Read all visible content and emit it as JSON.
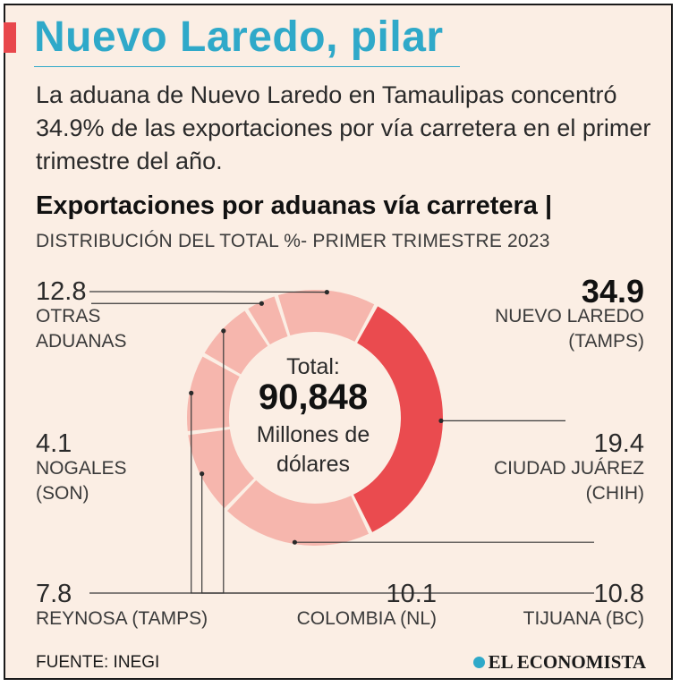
{
  "header": {
    "title": "Nuevo Laredo, pilar",
    "subtitle": "La aduana de Nuevo Laredo en Tamaulipas concentró 34.9% de las exportaciones por vía carretera en el primer trimestre del año."
  },
  "chart_title": "Exportaciones por aduanas vía carretera |",
  "chart_subtitle": "DISTRIBUCIÓN DEL TOTAL %- PRIMER TRIMESTRE 2023",
  "center": {
    "label": "Total:",
    "value": "90,848",
    "unit": "Millones de dólares"
  },
  "chart_data": {
    "type": "pie",
    "variant": "donut",
    "title": "Exportaciones por aduanas vía carretera",
    "subtitle": "DISTRIBUCIÓN DEL TOTAL %- PRIMER TRIMESTRE 2023",
    "unit": "%",
    "total": "90,848",
    "total_unit": "Millones de dólares",
    "categories": [
      "NUEVO LAREDO (TAMPS)",
      "CIUDAD JUÁREZ (CHIH)",
      "TIJUANA (BC)",
      "COLOMBIA (NL)",
      "REYNOSA (TAMPS)",
      "NOGALES (SON)",
      "OTRAS ADUANAS"
    ],
    "values": [
      34.9,
      19.4,
      10.8,
      10.1,
      7.8,
      4.1,
      12.8
    ],
    "value_labels": [
      "34.9",
      "19.4",
      "10.8",
      "10.1",
      "7.8",
      "4.1",
      "12.8"
    ],
    "label_lines": [
      [
        "NUEVO LAREDO",
        "(TAMPS)"
      ],
      [
        "CIUDAD JUÁREZ",
        "(CHIH)"
      ],
      [
        "TIJUANA (BC)"
      ],
      [
        "COLOMBIA (NL)"
      ],
      [
        "REYNOSA (TAMPS)"
      ],
      [
        "NOGALES",
        "(SON)"
      ],
      [
        "OTRAS",
        "ADUANAS"
      ]
    ],
    "colors": [
      "#ea4b4f",
      "#f6b6ad",
      "#f6b6ad",
      "#f6b6ad",
      "#f6b6ad",
      "#f6b6ad",
      "#f6b6ad"
    ]
  },
  "footer": {
    "source": "FUENTE: INEGI",
    "brand": "EL ECONOMISTA"
  }
}
